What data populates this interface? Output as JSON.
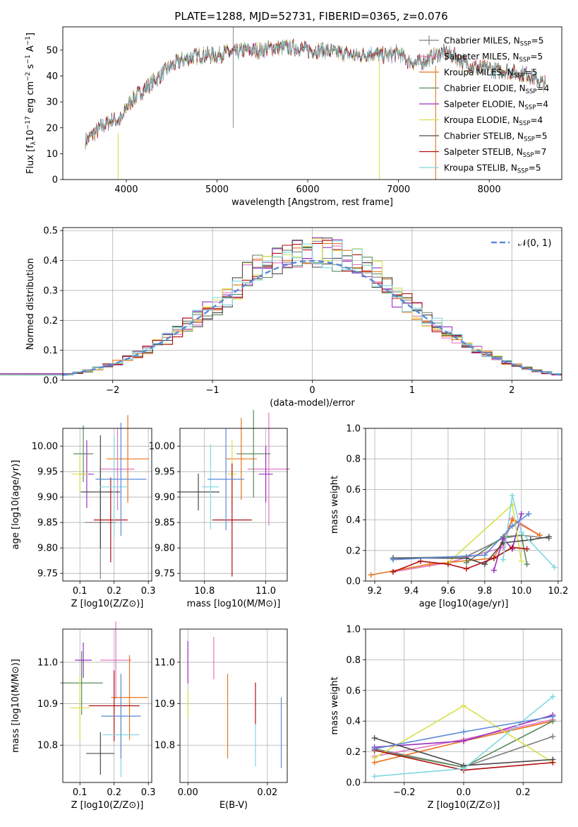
{
  "title": "PLATE=1288, MJD=52731, FIBERID=0365, z=0.076",
  "colors": {
    "Chabrier MILES": "#808080",
    "Salpeter MILES": "#e377c2",
    "Kroupa MILES": "#e8741c",
    "Chabrier ELODIE": "#5c8a5c",
    "Salpeter ELODIE": "#9b30c0",
    "Kroupa ELODIE": "#d9e04a",
    "Chabrier STELIB": "#4a4a4a",
    "Salpeter STELIB": "#b01010",
    "Kroupa STELIB": "#7fd8e0",
    "gaussian": "#5b8ad8"
  },
  "models": [
    "Chabrier MILES",
    "Salpeter MILES",
    "Kroupa MILES",
    "Chabrier ELODIE",
    "Salpeter ELODIE",
    "Kroupa ELODIE",
    "Chabrier STELIB",
    "Salpeter STELIB",
    "Kroupa STELIB"
  ],
  "chart_data": [
    {
      "id": "spectrum",
      "type": "line",
      "title": "PLATE=1288, MJD=52731, FIBERID=0365, z=0.076",
      "xlabel": "wavelength [Angstrom, rest frame]",
      "ylabel": "Flux [f_λ 10^-17 erg cm^-2 s^-1 A^-1]",
      "xlim": [
        3300,
        8800
      ],
      "ylim": [
        0,
        59
      ],
      "xticks": [
        "4000",
        "5000",
        "6000",
        "7000",
        "8000"
      ],
      "yticks": [
        "0",
        "10",
        "20",
        "30",
        "40",
        "50"
      ],
      "legend_position": "top-right",
      "legend": [
        {
          "label": "Chabrier MILES, N",
          "sub": "SSP",
          "suffix": "=5"
        },
        {
          "label": "Salpeter MILES, N",
          "sub": "SSP",
          "suffix": "=5"
        },
        {
          "label": "Kroupa MILES, N",
          "sub": "SSP",
          "suffix": "=5"
        },
        {
          "label": "Chabrier ELODIE, N",
          "sub": "SSP",
          "suffix": "=4"
        },
        {
          "label": "Salpeter ELODIE, N",
          "sub": "SSP",
          "suffix": "=4"
        },
        {
          "label": "Kroupa ELODIE, N",
          "sub": "SSP",
          "suffix": "=4"
        },
        {
          "label": "Chabrier STELIB, N",
          "sub": "SSP",
          "suffix": "=5"
        },
        {
          "label": "Salpeter STELIB, N",
          "sub": "SSP",
          "suffix": "=7"
        },
        {
          "label": "Kroupa STELIB, N",
          "sub": "SSP",
          "suffix": "=5"
        }
      ],
      "continuum": [
        [
          3550,
          15
        ],
        [
          3650,
          18
        ],
        [
          3750,
          21
        ],
        [
          3850,
          23
        ],
        [
          3950,
          23
        ],
        [
          4000,
          28
        ],
        [
          4100,
          32
        ],
        [
          4200,
          35
        ],
        [
          4300,
          38
        ],
        [
          4400,
          41
        ],
        [
          4500,
          44
        ],
        [
          4600,
          46
        ],
        [
          4700,
          47
        ],
        [
          4800,
          48
        ],
        [
          4900,
          48
        ],
        [
          5000,
          48
        ],
        [
          5100,
          49
        ],
        [
          5200,
          49
        ],
        [
          5300,
          50
        ],
        [
          5400,
          50
        ],
        [
          5500,
          50
        ],
        [
          5600,
          51
        ],
        [
          5700,
          51
        ],
        [
          5800,
          51
        ],
        [
          5900,
          51
        ],
        [
          6000,
          50
        ],
        [
          6100,
          50
        ],
        [
          6200,
          50
        ],
        [
          6300,
          49
        ],
        [
          6400,
          49
        ],
        [
          6500,
          48
        ],
        [
          6600,
          48
        ],
        [
          6700,
          49
        ],
        [
          6800,
          48
        ],
        [
          6900,
          48
        ],
        [
          7000,
          49
        ],
        [
          7100,
          46
        ],
        [
          7200,
          45
        ],
        [
          7300,
          46
        ],
        [
          7400,
          48
        ],
        [
          7500,
          49
        ],
        [
          7600,
          48
        ],
        [
          7700,
          46
        ],
        [
          7800,
          44
        ],
        [
          7900,
          43
        ],
        [
          8000,
          43
        ],
        [
          8100,
          42
        ],
        [
          8200,
          42
        ],
        [
          8300,
          41
        ],
        [
          8400,
          41
        ],
        [
          8500,
          39
        ],
        [
          8600,
          37
        ]
      ]
    },
    {
      "id": "residuals",
      "type": "line",
      "xlabel": "(data-model)/error",
      "ylabel": "Normed distribution",
      "xlim": [
        -2.5,
        2.5
      ],
      "ylim": [
        0,
        0.51
      ],
      "xticks": [
        "−2",
        "−1",
        "0",
        "1",
        "2"
      ],
      "yticks": [
        "0.0",
        "0.1",
        "0.2",
        "0.3",
        "0.4",
        "0.5"
      ],
      "grid": true,
      "legend_position": "top-right",
      "legend_label": "𝒩(0, 1)"
    },
    {
      "id": "age-vs-Z",
      "type": "scatter",
      "xlabel": "Z [log10(Z/Z⊙)]",
      "ylabel": "age  [log10(age/yr)]",
      "xlim": [
        0.05,
        0.31
      ],
      "ylim": [
        9.735,
        10.035
      ],
      "xticks": [
        "0.1",
        "0.2",
        "0.3"
      ],
      "yticks": [
        "9.75",
        "9.80",
        "9.85",
        "9.90",
        "9.95",
        "10.00"
      ],
      "grid": true,
      "points": [
        {
          "model": "Chabrier MILES",
          "x": 0.16,
          "y": 9.85
        },
        {
          "model": "Salpeter MILES",
          "x": 0.21,
          "y": 9.955
        },
        {
          "model": "Kroupa MILES",
          "x": 0.24,
          "y": 9.975
        },
        {
          "model": "Chabrier ELODIE",
          "x": 0.11,
          "y": 9.985
        },
        {
          "model": "Salpeter ELODIE",
          "x": 0.12,
          "y": 9.945
        },
        {
          "model": "Kroupa ELODIE",
          "x": 0.1,
          "y": 9.945
        },
        {
          "model": "Chabrier STELIB",
          "x": 0.16,
          "y": 9.91
        },
        {
          "model": "Salpeter STELIB",
          "x": 0.19,
          "y": 9.855
        },
        {
          "model": "Kroupa STELIB",
          "x": 0.2,
          "y": 9.92
        },
        {
          "model": "gaussian",
          "x": 0.22,
          "y": 9.935
        }
      ]
    },
    {
      "id": "age-vs-mass",
      "type": "scatter",
      "xlabel": "mass [log10(M/M⊙)]",
      "ylabel": "",
      "xlim": [
        10.72,
        11.07
      ],
      "ylim": [
        9.735,
        10.035
      ],
      "xticks": [
        "10.8",
        "11.0"
      ],
      "yticks": [
        "9.75",
        "9.80",
        "9.85",
        "9.90",
        "9.95",
        "10.00"
      ],
      "grid": true,
      "points": [
        {
          "model": "Salpeter MILES",
          "x": 11.01,
          "y": 9.955
        },
        {
          "model": "Kroupa MILES",
          "x": 10.92,
          "y": 9.975
        },
        {
          "model": "Chabrier ELODIE",
          "x": 10.96,
          "y": 9.985
        },
        {
          "model": "Salpeter ELODIE",
          "x": 11.0,
          "y": 9.945
        },
        {
          "model": "Kroupa ELODIE",
          "x": 10.89,
          "y": 9.945
        },
        {
          "model": "Chabrier STELIB",
          "x": 10.78,
          "y": 9.91
        },
        {
          "model": "Salpeter STELIB",
          "x": 10.89,
          "y": 9.855
        },
        {
          "model": "Kroupa STELIB",
          "x": 10.82,
          "y": 9.92
        },
        {
          "model": "gaussian",
          "x": 10.87,
          "y": 9.935
        }
      ]
    },
    {
      "id": "weight-vs-age",
      "type": "line",
      "xlabel": "age  [log10(age/yr)]",
      "ylabel": "mass weight",
      "xlim": [
        9.15,
        10.22
      ],
      "ylim": [
        0,
        1.0
      ],
      "xticks": [
        "9.2",
        "9.4",
        "9.6",
        "9.8",
        "10.0",
        "10.2"
      ],
      "yticks": [
        "0.0",
        "0.2",
        "0.4",
        "0.6",
        "0.8",
        "1.0"
      ],
      "grid": true,
      "series": [
        {
          "model": "Chabrier MILES",
          "x": [
            9.3,
            9.7,
            9.9,
            10.0,
            10.15
          ],
          "y": [
            0.15,
            0.16,
            0.28,
            0.3,
            0.28
          ]
        },
        {
          "model": "Salpeter MILES",
          "x": [
            9.3,
            9.6,
            9.9,
            9.95,
            10.1
          ],
          "y": [
            0.06,
            0.12,
            0.22,
            0.41,
            0.3
          ]
        },
        {
          "model": "Kroupa MILES",
          "x": [
            9.18,
            9.5,
            9.85,
            9.95,
            10.1
          ],
          "y": [
            0.04,
            0.11,
            0.15,
            0.4,
            0.3
          ]
        },
        {
          "model": "Chabrier ELODIE",
          "x": [
            9.7,
            9.9,
            10.0,
            10.03
          ],
          "y": [
            0.12,
            0.29,
            0.3,
            0.11
          ]
        },
        {
          "model": "Salpeter ELODIE",
          "x": [
            9.85,
            9.9,
            9.95,
            10.0
          ],
          "y": [
            0.07,
            0.28,
            0.21,
            0.44
          ]
        },
        {
          "model": "Kroupa ELODIE",
          "x": [
            9.6,
            9.95,
            10.0
          ],
          "y": [
            0.12,
            0.5,
            0.13
          ]
        },
        {
          "model": "Chabrier STELIB",
          "x": [
            9.3,
            9.7,
            9.8,
            9.9,
            10.05,
            10.15
          ],
          "y": [
            0.15,
            0.15,
            0.11,
            0.25,
            0.27,
            0.29
          ]
        },
        {
          "model": "Salpeter STELIB",
          "x": [
            9.3,
            9.45,
            9.6,
            9.7,
            9.85,
            9.95,
            10.03
          ],
          "y": [
            0.06,
            0.13,
            0.11,
            0.08,
            0.15,
            0.22,
            0.21
          ]
        },
        {
          "model": "Kroupa STELIB",
          "x": [
            9.9,
            9.95,
            10.0,
            10.18
          ],
          "y": [
            0.14,
            0.56,
            0.32,
            0.09
          ]
        },
        {
          "model": "gaussian",
          "x": [
            9.3,
            9.8,
            9.95,
            10.04
          ],
          "y": [
            0.14,
            0.17,
            0.36,
            0.44
          ]
        }
      ]
    },
    {
      "id": "mass-vs-Z",
      "type": "scatter",
      "xlabel": "Z [log10(Z/Z⊙)]",
      "ylabel": "mass [log10(M/M⊙)]",
      "xlim": [
        0.05,
        0.31
      ],
      "ylim": [
        10.71,
        11.08
      ],
      "xticks": [
        "0.1",
        "0.2",
        "0.3"
      ],
      "yticks": [
        "10.8",
        "10.9",
        "11.0"
      ],
      "grid": true,
      "points": [
        {
          "model": "Salpeter MILES",
          "x": 0.205,
          "y": 11.005
        },
        {
          "model": "Kroupa MILES",
          "x": 0.245,
          "y": 10.915
        },
        {
          "model": "Chabrier ELODIE",
          "x": 0.105,
          "y": 10.95
        },
        {
          "model": "Salpeter ELODIE",
          "x": 0.11,
          "y": 11.005
        },
        {
          "model": "Kroupa ELODIE",
          "x": 0.1,
          "y": 10.89
        },
        {
          "model": "Chabrier STELIB",
          "x": 0.16,
          "y": 10.78
        },
        {
          "model": "Salpeter STELIB",
          "x": 0.2,
          "y": 10.895
        },
        {
          "model": "Kroupa STELIB",
          "x": 0.22,
          "y": 10.825
        },
        {
          "model": "gaussian",
          "x": 0.22,
          "y": 10.87
        }
      ]
    },
    {
      "id": "mass-vs-EBV",
      "type": "scatter",
      "xlabel": "E(B-V)",
      "ylabel": "",
      "xlim": [
        -0.002,
        0.025
      ],
      "ylim": [
        10.71,
        11.08
      ],
      "xticks": [
        "0.00",
        "0.02"
      ],
      "yticks": [
        "10.8",
        "10.9",
        "11.0"
      ],
      "grid": true,
      "points": [
        {
          "model": "Salpeter MILES",
          "x": 0.0065,
          "y": 11.01
        },
        {
          "model": "Kroupa MILES",
          "x": 0.01,
          "y": 10.87
        },
        {
          "model": "Salpeter ELODIE",
          "x": 0.0,
          "y": 11.0
        },
        {
          "model": "Kroupa ELODIE",
          "x": 0.0,
          "y": 10.9
        },
        {
          "model": "Salpeter STELIB",
          "x": 0.017,
          "y": 10.9
        },
        {
          "model": "Kroupa STELIB",
          "x": 0.017,
          "y": 10.8
        },
        {
          "model": "gaussian",
          "x": 0.0235,
          "y": 10.83
        }
      ]
    },
    {
      "id": "weight-vs-Z",
      "type": "line",
      "xlabel": "Z [log10(Z/Z⊙)]",
      "ylabel": "mass weight",
      "xlim": [
        -0.33,
        0.33
      ],
      "ylim": [
        0,
        1.0
      ],
      "xticks": [
        "−0.2",
        "0.0",
        "0.2"
      ],
      "yticks": [
        "0.0",
        "0.2",
        "0.4",
        "0.6",
        "0.8",
        "1.0"
      ],
      "grid": true,
      "series": [
        {
          "model": "Chabrier MILES",
          "x": [
            -0.3,
            0.0,
            0.3
          ],
          "y": [
            0.22,
            0.1,
            0.3
          ]
        },
        {
          "model": "Salpeter MILES",
          "x": [
            -0.3,
            0.0,
            0.3
          ],
          "y": [
            0.17,
            0.28,
            0.41
          ]
        },
        {
          "model": "Kroupa MILES",
          "x": [
            -0.3,
            0.0,
            0.3
          ],
          "y": [
            0.13,
            0.27,
            0.4
          ]
        },
        {
          "model": "Chabrier ELODIE",
          "x": [
            -0.3,
            0.0,
            0.3
          ],
          "y": [
            0.21,
            0.1,
            0.4
          ]
        },
        {
          "model": "Salpeter ELODIE",
          "x": [
            -0.3,
            0.0,
            0.3
          ],
          "y": [
            0.23,
            0.27,
            0.44
          ]
        },
        {
          "model": "Kroupa ELODIE",
          "x": [
            -0.3,
            0.0,
            0.3
          ],
          "y": [
            0.16,
            0.5,
            0.13
          ]
        },
        {
          "model": "Chabrier STELIB",
          "x": [
            -0.3,
            0.0,
            0.3
          ],
          "y": [
            0.29,
            0.11,
            0.15
          ]
        },
        {
          "model": "Salpeter STELIB",
          "x": [
            -0.3,
            0.0,
            0.3
          ],
          "y": [
            0.21,
            0.08,
            0.13
          ]
        },
        {
          "model": "Kroupa STELIB",
          "x": [
            -0.3,
            0.0,
            0.3
          ],
          "y": [
            0.04,
            0.09,
            0.56
          ]
        },
        {
          "model": "gaussian",
          "x": [
            -0.3,
            0.0,
            0.3
          ],
          "y": [
            0.22,
            0.33,
            0.43
          ]
        }
      ]
    }
  ]
}
